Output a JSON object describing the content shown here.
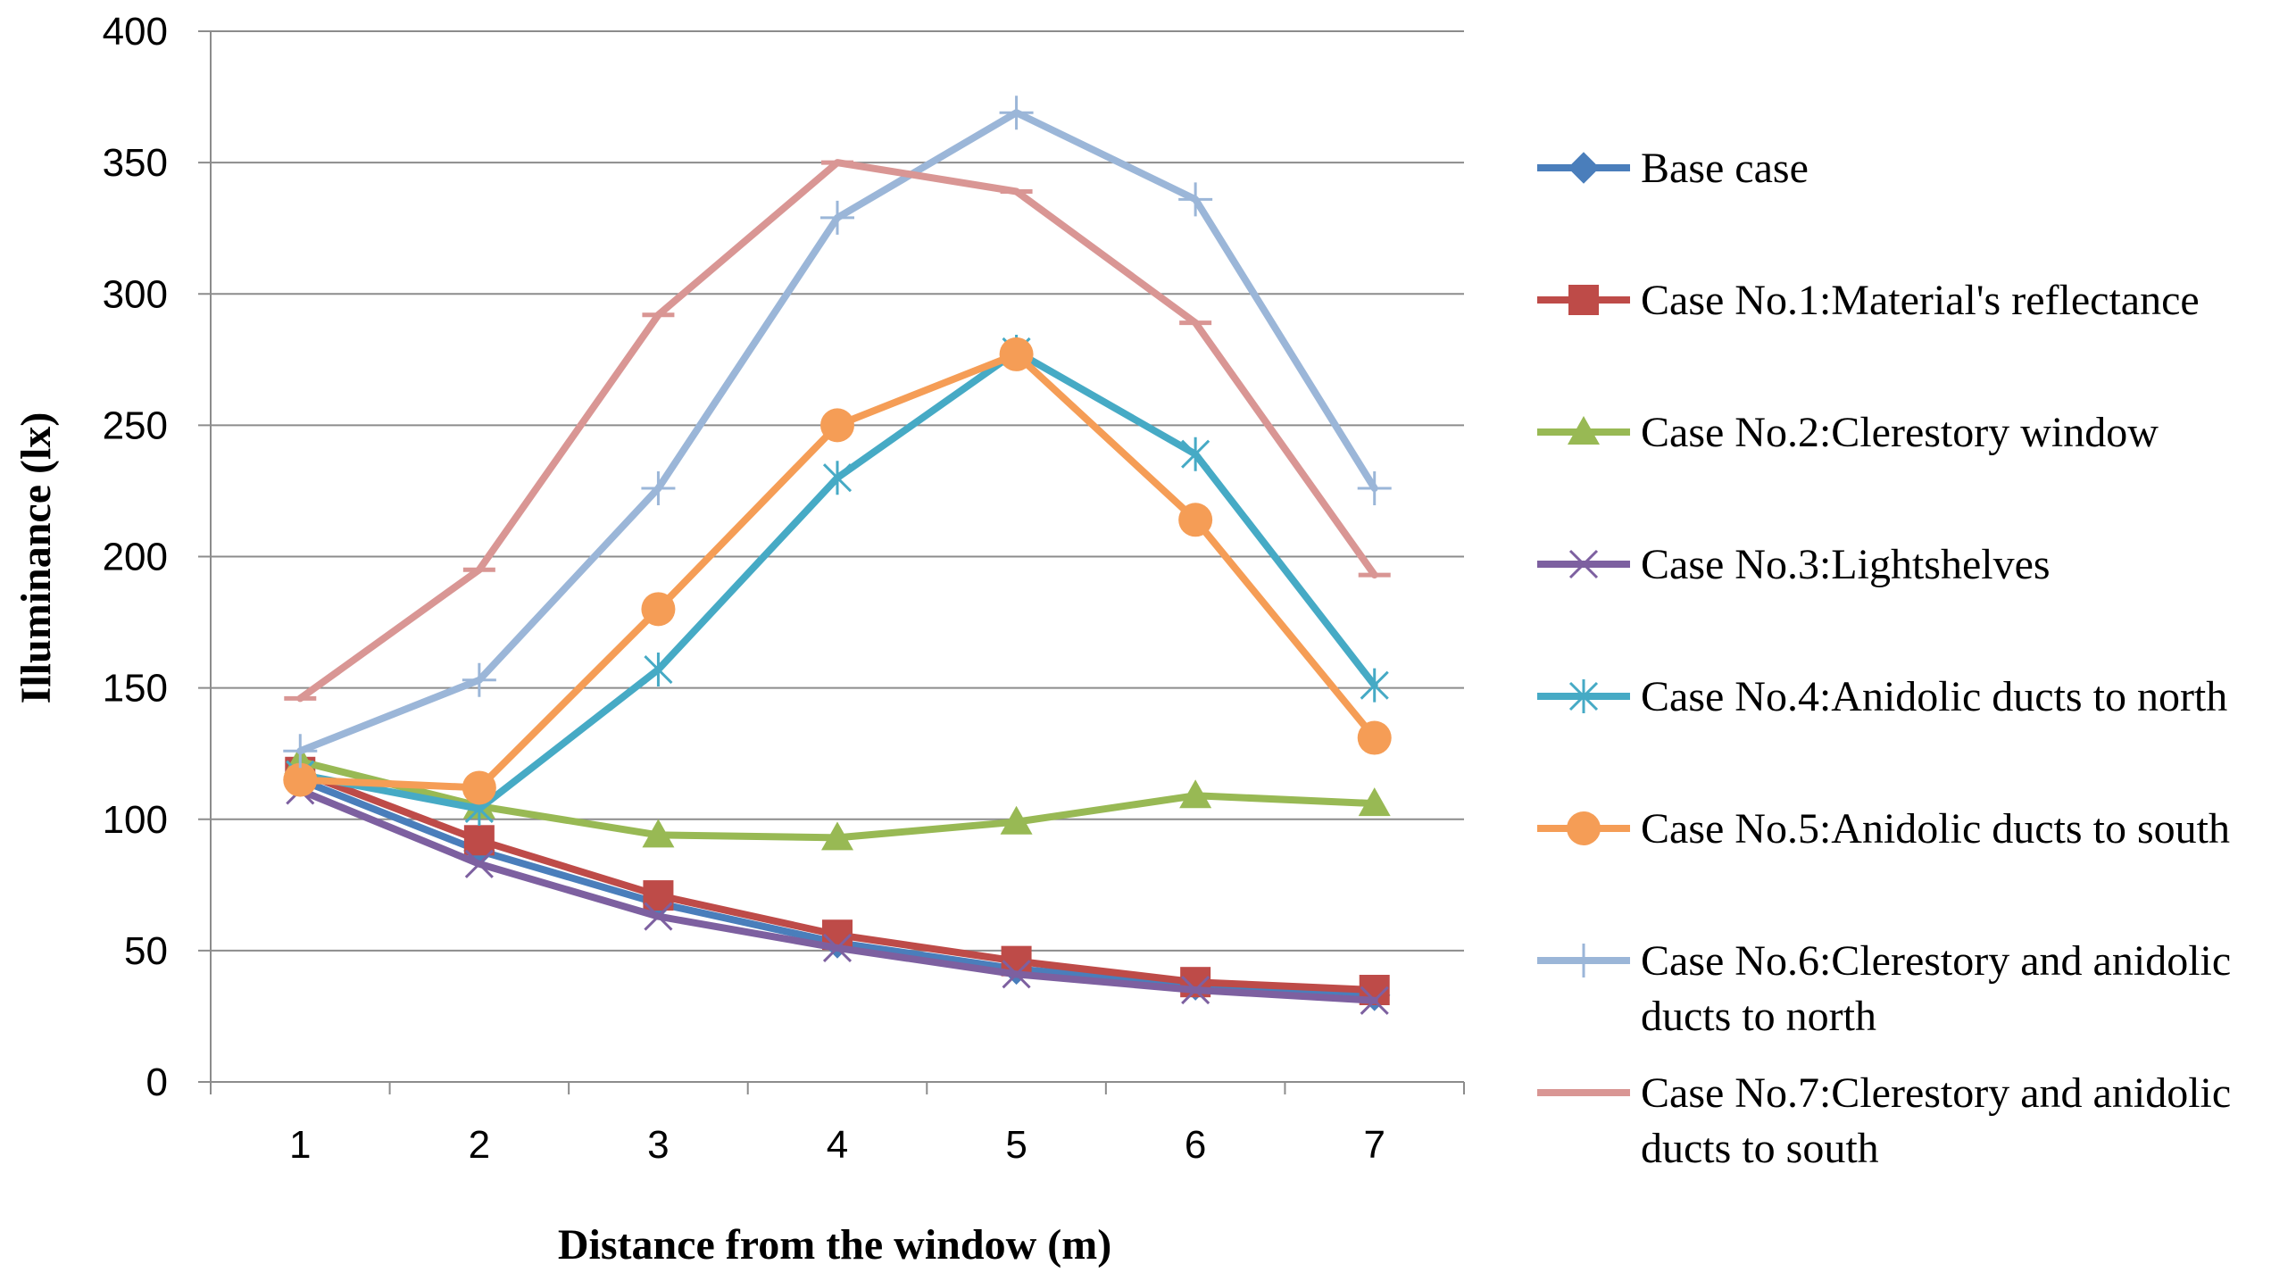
{
  "chart_data": {
    "type": "line",
    "title": "",
    "xlabel": "Distance from the window (m)",
    "ylabel": "Illuminance (lx)",
    "x": [
      1,
      2,
      3,
      4,
      5,
      6,
      7
    ],
    "x_tick_labels": [
      "1",
      "2",
      "3",
      "4",
      "5",
      "6",
      "7"
    ],
    "ylim": [
      0,
      400
    ],
    "y_ticks": [
      0,
      50,
      100,
      150,
      200,
      250,
      300,
      350,
      400
    ],
    "y_tick_labels": [
      "0",
      "50",
      "100",
      "150",
      "200",
      "250",
      "300",
      "350",
      "400"
    ],
    "grid": "horizontal",
    "legend_position": "right",
    "series": [
      {
        "name": "Base case",
        "legend_lines": [
          "Base case"
        ],
        "color": "#4a7ebb",
        "marker": "diamond",
        "values": [
          115,
          88,
          68,
          53,
          43,
          37,
          33
        ]
      },
      {
        "name": "Case No.1:Material's reflectance",
        "legend_lines": [
          "Case No.1:Material's  reflectance"
        ],
        "color": "#be4b48",
        "marker": "square",
        "values": [
          118,
          92,
          71,
          56,
          46,
          38,
          35
        ]
      },
      {
        "name": "Case No.2:Clerestory window",
        "legend_lines": [
          "Case No.2:Clerestory  window"
        ],
        "color": "#98b954",
        "marker": "triangle",
        "values": [
          122,
          105,
          94,
          93,
          99,
          109,
          106
        ]
      },
      {
        "name": "Case No.3:Lightshelves",
        "legend_lines": [
          "Case No.3:Lightshelves"
        ],
        "color": "#7d60a0",
        "marker": "x",
        "values": [
          111,
          83,
          63,
          51,
          41,
          35,
          31
        ]
      },
      {
        "name": "Case No.4:Anidolic ducts to north",
        "legend_lines": [
          "Case No.4:Anidolic ducts to north"
        ],
        "color": "#46aac5",
        "marker": "asterisk",
        "values": [
          117,
          104,
          157,
          230,
          278,
          239,
          151
        ]
      },
      {
        "name": "Case No.5:Anidolic ducts to south",
        "legend_lines": [
          "Case No.5:Anidolic ducts to south"
        ],
        "color": "#f59d56",
        "marker": "circle",
        "values": [
          115,
          112,
          180,
          250,
          277,
          214,
          131
        ]
      },
      {
        "name": "Case No.6:Clerestory and anidolic ducts to north",
        "legend_lines": [
          "Case No.6:Clerestory and anidolic",
          "ducts to north"
        ],
        "color": "#9bb6d8",
        "marker": "plus",
        "values": [
          126,
          153,
          226,
          329,
          369,
          336,
          226
        ]
      },
      {
        "name": "Case No.7:Clerestory and anidolic ducts to south",
        "legend_lines": [
          "Case No.7:Clerestory and anidolic",
          "ducts to south"
        ],
        "color": "#d99694",
        "marker": "dash",
        "values": [
          146,
          195,
          292,
          350,
          339,
          289,
          193
        ]
      }
    ]
  }
}
